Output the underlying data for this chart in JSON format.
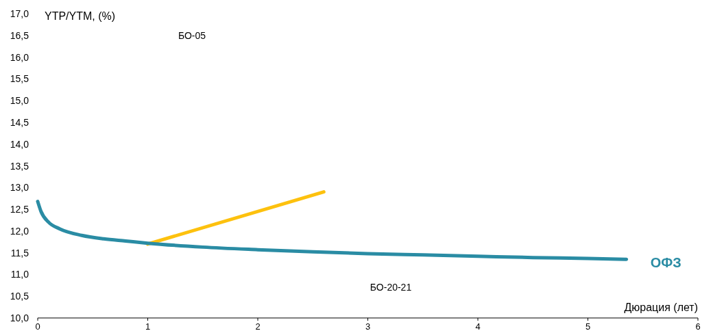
{
  "chart_data": {
    "type": "line",
    "ylabel": "YTP/YTM, (%)",
    "xlabel": "Дюрация (лет)",
    "xlim": [
      0,
      6
    ],
    "xticks": [
      0,
      1,
      2,
      3,
      4,
      5,
      6
    ],
    "ylim": [
      10,
      17
    ],
    "yticks": [
      {
        "value": 10,
        "label": "10,0"
      },
      {
        "value": 10.5,
        "label": "10,5"
      },
      {
        "value": 11,
        "label": "11,0"
      },
      {
        "value": 11.5,
        "label": "11,5"
      },
      {
        "value": 12,
        "label": "12,0"
      },
      {
        "value": 12.5,
        "label": "12,5"
      },
      {
        "value": 13,
        "label": "13,0"
      },
      {
        "value": 13.5,
        "label": "13,5"
      },
      {
        "value": 14,
        "label": "14,0"
      },
      {
        "value": 14.5,
        "label": "14,5"
      },
      {
        "value": 15,
        "label": "15,0"
      },
      {
        "value": 15.5,
        "label": "15,5"
      },
      {
        "value": 16,
        "label": "16,0"
      },
      {
        "value": 16.5,
        "label": "16,5"
      },
      {
        "value": 17,
        "label": "17,0"
      }
    ],
    "grid": false,
    "marker": "none",
    "line_style": "solid",
    "series": [
      {
        "color": "#fdc10e",
        "x": [
          1,
          2.6
        ],
        "values": [
          11.7,
          12.9
        ]
      },
      {
        "name": "ОФЗ",
        "color": "#2a8ca4",
        "x": [
          0,
          0.03,
          0.1,
          0.2,
          0.4,
          0.6,
          0.8,
          1,
          1.5,
          2,
          2.5,
          3,
          3.5,
          4,
          4.5,
          5,
          5.35
        ],
        "values": [
          12.68,
          12.45,
          12.2,
          12.05,
          11.9,
          11.82,
          11.77,
          11.72,
          11.63,
          11.57,
          11.52,
          11.48,
          11.45,
          11.42,
          11.39,
          11.37,
          11.35
        ]
      }
    ],
    "annotations": [
      "БО-05",
      "БО-20-21"
    ]
  }
}
